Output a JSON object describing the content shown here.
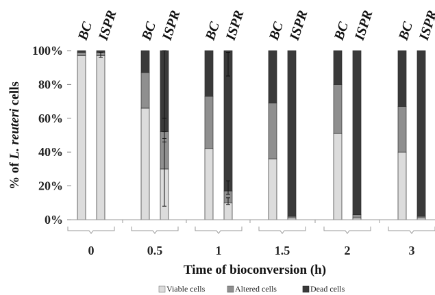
{
  "chart_data": {
    "type": "bar",
    "stacked": true,
    "xlabel": "Time of bioconversion (h)",
    "ylabel_parts": [
      "% of ",
      "L. reuteri",
      " cells"
    ],
    "ytick_labels": [
      "0%",
      "20%",
      "40%",
      "60%",
      "80%",
      "100%"
    ],
    "ylim": [
      0,
      100
    ],
    "bar_labels": [
      "BC",
      "ISPR"
    ],
    "groups": [
      {
        "time": "0",
        "BC": [
          97,
          2,
          1
        ],
        "ISPR": [
          97,
          2,
          1
        ],
        "ISPR_err": [
          [
            96,
            99
          ]
        ]
      },
      {
        "time": "0.5",
        "BC": [
          66,
          21,
          13
        ],
        "ISPR": [
          30,
          22,
          48
        ],
        "ISPR_err": [
          [
            8,
            52
          ],
          [
            46,
            60
          ],
          [
            48,
            100
          ]
        ]
      },
      {
        "time": "1",
        "BC": [
          42,
          31,
          27
        ],
        "ISPR": [
          10,
          7,
          83
        ],
        "ISPR_err": [
          [
            9,
            13
          ],
          [
            15,
            23
          ],
          [
            85,
            99
          ]
        ]
      },
      {
        "time": "1.5",
        "BC": [
          36,
          33,
          31
        ],
        "ISPR": [
          1,
          1,
          98
        ],
        "ISPR_err": []
      },
      {
        "time": "2",
        "BC": [
          51,
          29,
          20
        ],
        "ISPR": [
          1,
          2,
          97
        ],
        "ISPR_err": []
      },
      {
        "time": "3",
        "BC": [
          40,
          27,
          33
        ],
        "ISPR": [
          1,
          1,
          98
        ],
        "ISPR_err": []
      }
    ],
    "series": [
      {
        "name": "Viable cells",
        "color": "#dcdcdc"
      },
      {
        "name": "Altered cells",
        "color": "#8f8f8f"
      },
      {
        "name": "Dead cells",
        "color": "#3a3a3a"
      }
    ],
    "legend_position": "bottom"
  }
}
